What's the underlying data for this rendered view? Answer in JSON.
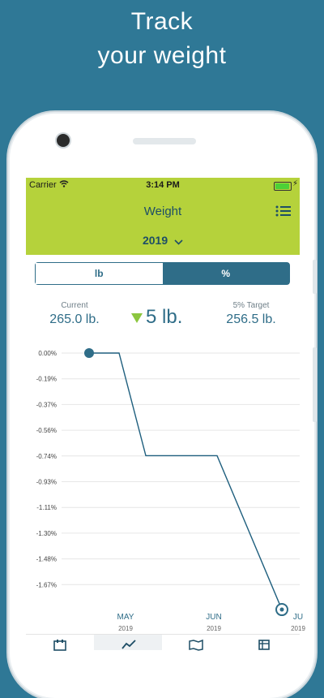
{
  "promo": {
    "line1": "Track",
    "line2": "your weight"
  },
  "status_bar": {
    "carrier": "Carrier",
    "time": "3:14 PM"
  },
  "header": {
    "title": "Weight",
    "year": "2019"
  },
  "unit_toggle": {
    "options": [
      "lb",
      "%"
    ],
    "selected": "%"
  },
  "stats": {
    "current_label": "Current",
    "current_value": "265.0 lb.",
    "change_value": "5 lb.",
    "target_label": "5% Target",
    "target_value": "256.5 lb."
  },
  "chart_data": {
    "type": "line",
    "y_ticks": [
      "0.00%",
      "-0.19%",
      "-0.37%",
      "-0.56%",
      "-0.74%",
      "-0.93%",
      "-1.11%",
      "-1.30%",
      "-1.48%",
      "-1.67%"
    ],
    "x_ticks": [
      {
        "month": "MAY",
        "year": "2019"
      },
      {
        "month": "JUN",
        "year": "2019"
      },
      {
        "month": "JU",
        "year": "2019"
      }
    ],
    "series": [
      {
        "values": [
          0.0,
          0.0,
          -0.74,
          -0.74,
          -1.85
        ]
      }
    ],
    "ylim": [
      -1.85,
      0.0
    ],
    "grid": true,
    "line_color": "#1f5f7e",
    "marker_color": "#2f6d88"
  },
  "tabs": [
    {
      "icon": "calendar-icon"
    },
    {
      "icon": "trend-chart-icon"
    },
    {
      "icon": "map-icon"
    },
    {
      "icon": "list-icon"
    }
  ],
  "colors": {
    "background": "#2f7896",
    "header": "#b5d23b",
    "accent": "#2f6d88"
  }
}
